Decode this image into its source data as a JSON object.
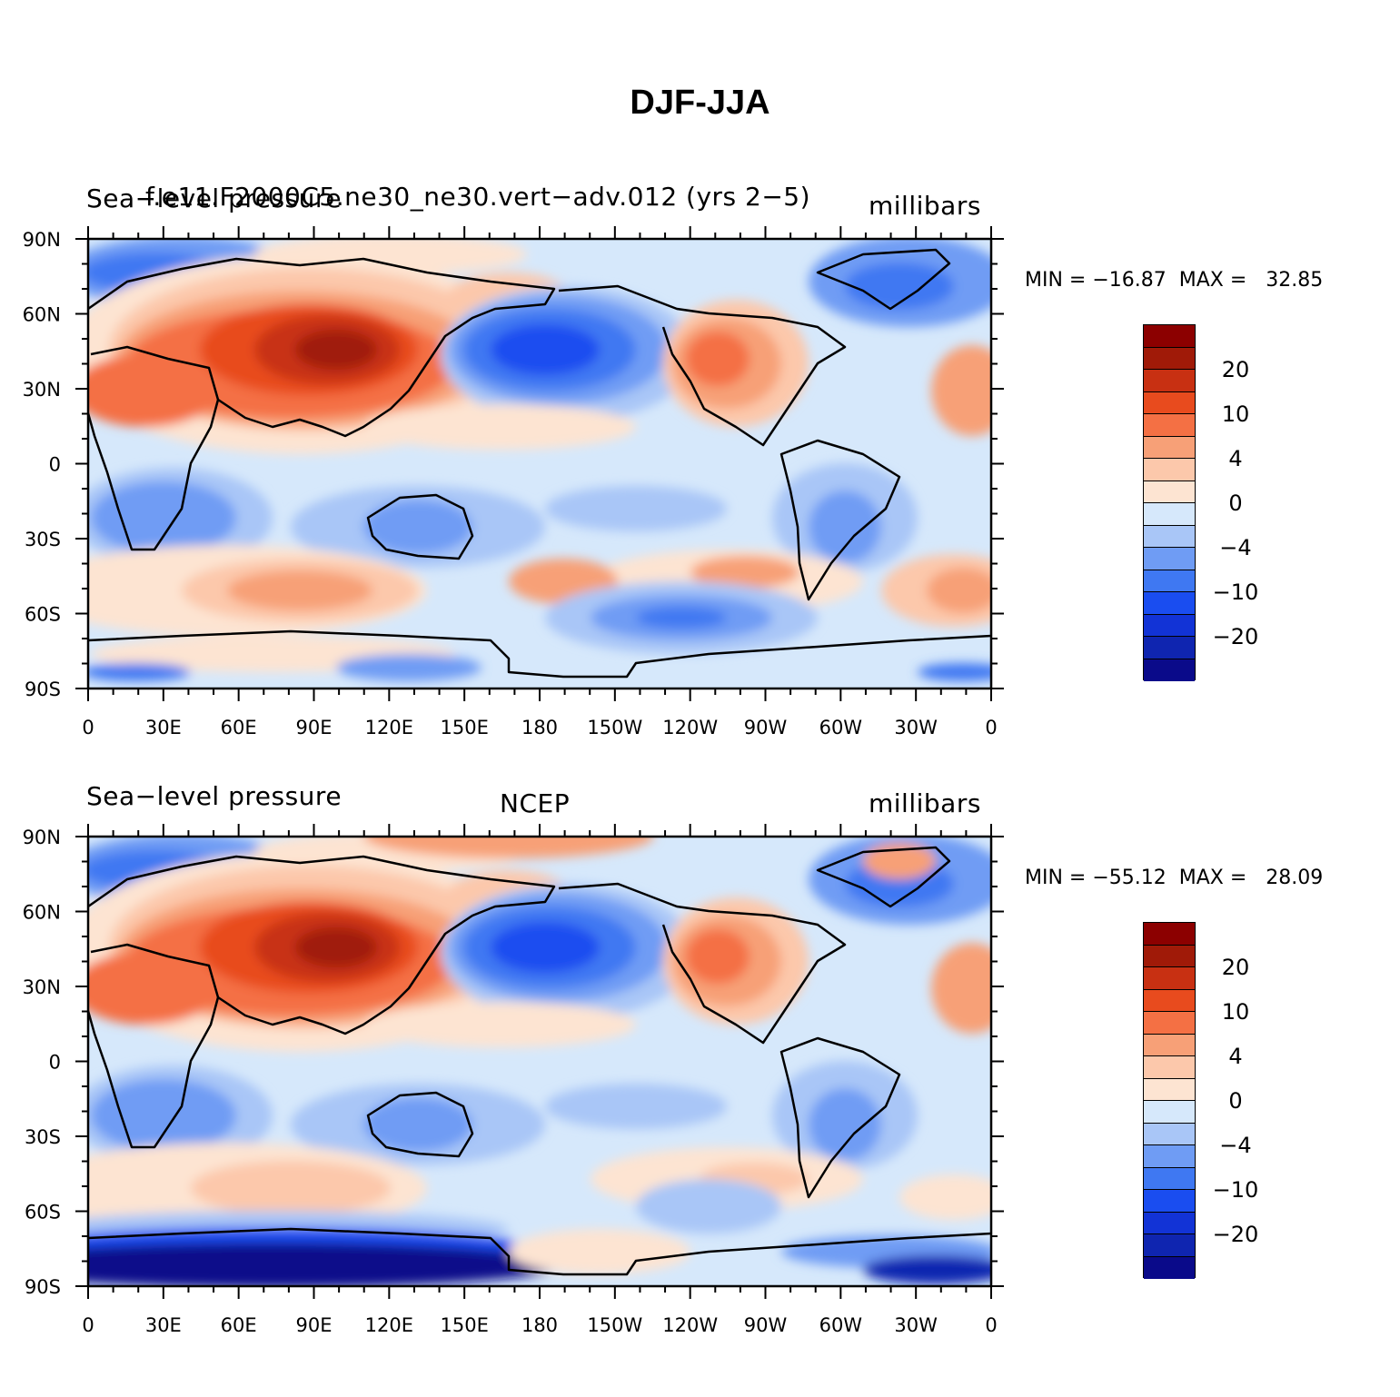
{
  "title": "DJF-JJA",
  "colors": [
    "#0a0a8a",
    "#0f25b0",
    "#1233d6",
    "#1a4df0",
    "#3f78f2",
    "#6f9cf4",
    "#a9c6f7",
    "#d6e8fb",
    "#fde4d2",
    "#fcc8ab",
    "#f7a077",
    "#f47044",
    "#e84b1e",
    "#c83012",
    "#a01a08",
    "#8c0000"
  ],
  "colorbar": {
    "labels": [
      "20",
      "10",
      "4",
      "0",
      "−4",
      "−10",
      "−20"
    ]
  },
  "axes": {
    "lat_labels": [
      "90N",
      "60N",
      "30N",
      "0",
      "30S",
      "60S",
      "90S"
    ],
    "lon_labels": [
      "0",
      "30E",
      "60E",
      "90E",
      "120E",
      "150E",
      "180",
      "150W",
      "120W",
      "90W",
      "60W",
      "30W",
      "0"
    ]
  },
  "panels": [
    {
      "left_label": "Sea−level pressure",
      "center_label": "f.e11.F2000C5.ne30_ne30.vert−adv.012 (yrs 2−5)",
      "right_label": "millibars",
      "minmax": "MIN = −16.87  MAX =   32.85",
      "min": -16.87,
      "max": 32.85
    },
    {
      "left_label": "Sea−level pressure",
      "center_label": "NCEP",
      "right_label": "millibars",
      "minmax": "MIN = −55.12  MAX =   28.09",
      "min": -55.12,
      "max": 28.09
    }
  ]
}
